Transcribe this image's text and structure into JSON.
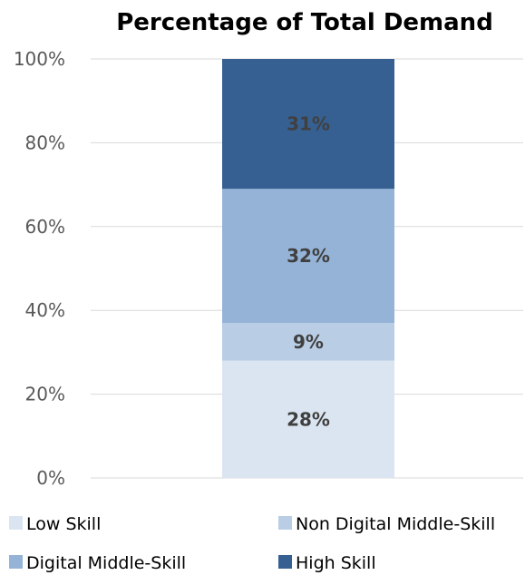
{
  "chart_data": {
    "type": "bar",
    "stacked": true,
    "title": "Percentage of Total Demand",
    "xlabel": "",
    "ylabel": "",
    "categories": [
      ""
    ],
    "ylim": [
      0,
      100
    ],
    "yticks": [
      0,
      20,
      40,
      60,
      80,
      100
    ],
    "ytick_labels": [
      "0%",
      "20%",
      "40%",
      "60%",
      "80%",
      "100%"
    ],
    "grid": true,
    "legend_position": "bottom",
    "series": [
      {
        "name": "Low Skill",
        "values": [
          28
        ],
        "label": "28%",
        "color": "#dbe5f1"
      },
      {
        "name": "Non Digital Middle-Skill",
        "values": [
          9
        ],
        "label": "9%",
        "color": "#b9cde5"
      },
      {
        "name": "Digital Middle-Skill",
        "values": [
          32
        ],
        "label": "32%",
        "color": "#95b3d7"
      },
      {
        "name": "High Skill",
        "values": [
          31
        ],
        "label": "31%",
        "color": "#366092"
      }
    ]
  }
}
